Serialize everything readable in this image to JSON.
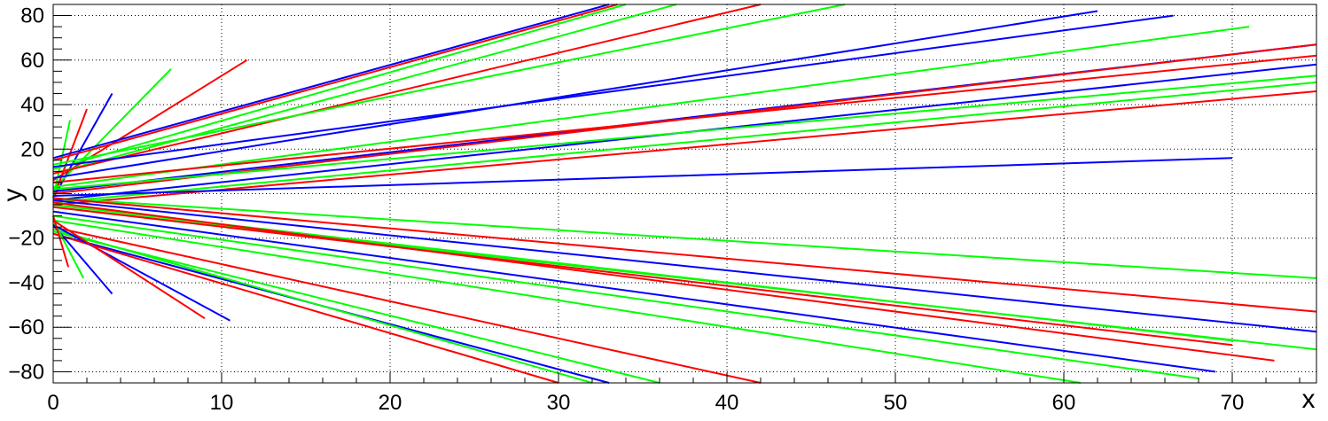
{
  "chart_data": {
    "type": "line",
    "title": "",
    "xlabel": "x",
    "ylabel": "y",
    "xlim": [
      0,
      75
    ],
    "ylim": [
      -85,
      85
    ],
    "grid": true,
    "x_ticks": [
      0,
      10,
      20,
      30,
      40,
      50,
      60,
      70
    ],
    "y_ticks": [
      -80,
      -60,
      -40,
      -20,
      0,
      20,
      40,
      60,
      80
    ],
    "x_tick_labels": [
      "0",
      "10",
      "20",
      "30",
      "40",
      "50",
      "60",
      "70"
    ],
    "y_tick_labels": [
      "−80",
      "−60",
      "−40",
      "−20",
      "0",
      "20",
      "40",
      "60",
      "80"
    ],
    "series": [
      {
        "color": "#0000ff",
        "x": [
          0,
          3.5
        ],
        "y": [
          -2,
          45
        ]
      },
      {
        "color": "#00ff00",
        "x": [
          0,
          7
        ],
        "y": [
          2,
          56
        ]
      },
      {
        "color": "#ff0000",
        "x": [
          0,
          11.5
        ],
        "y": [
          6,
          60
        ]
      },
      {
        "color": "#ff0000",
        "x": [
          0,
          2
        ],
        "y": [
          -2,
          38
        ]
      },
      {
        "color": "#00ff00",
        "x": [
          0,
          1
        ],
        "y": [
          -2,
          33
        ]
      },
      {
        "color": "#0000ff",
        "x": [
          0,
          33
        ],
        "y": [
          16,
          85
        ]
      },
      {
        "color": "#ff0000",
        "x": [
          0,
          33.5
        ],
        "y": [
          15,
          85
        ]
      },
      {
        "color": "#00ff00",
        "x": [
          0,
          34
        ],
        "y": [
          11,
          85
        ]
      },
      {
        "color": "#00ff00",
        "x": [
          0,
          37
        ],
        "y": [
          9,
          85
        ]
      },
      {
        "color": "#ff0000",
        "x": [
          0,
          42
        ],
        "y": [
          9,
          85
        ]
      },
      {
        "color": "#00ff00",
        "x": [
          0,
          47
        ],
        "y": [
          13,
          85
        ]
      },
      {
        "color": "#0000ff",
        "x": [
          0,
          62
        ],
        "y": [
          7,
          82
        ]
      },
      {
        "color": "#0000ff",
        "x": [
          0,
          66.5
        ],
        "y": [
          12,
          80
        ]
      },
      {
        "color": "#00ff00",
        "x": [
          0,
          71
        ],
        "y": [
          3,
          75
        ]
      },
      {
        "color": "#0000ff",
        "x": [
          0,
          75
        ],
        "y": [
          1,
          67
        ]
      },
      {
        "color": "#ff0000",
        "x": [
          0,
          75
        ],
        "y": [
          0,
          67
        ]
      },
      {
        "color": "#ff0000",
        "x": [
          0,
          75
        ],
        "y": [
          5,
          62
        ]
      },
      {
        "color": "#0000ff",
        "x": [
          0,
          75
        ],
        "y": [
          -3,
          58
        ]
      },
      {
        "color": "#00ff00",
        "x": [
          0,
          75
        ],
        "y": [
          2,
          53
        ]
      },
      {
        "color": "#00ff00",
        "x": [
          0,
          75
        ],
        "y": [
          -4,
          50
        ]
      },
      {
        "color": "#ff0000",
        "x": [
          0,
          75
        ],
        "y": [
          -5,
          46
        ]
      },
      {
        "color": "#0000ff",
        "x": [
          0,
          70
        ],
        "y": [
          -1,
          16
        ]
      },
      {
        "color": "#00ff00",
        "x": [
          0,
          75
        ],
        "y": [
          -2,
          -38
        ]
      },
      {
        "color": "#ff0000",
        "x": [
          0,
          75
        ],
        "y": [
          -2,
          -53
        ]
      },
      {
        "color": "#0000ff",
        "x": [
          0,
          75
        ],
        "y": [
          -3,
          -62
        ]
      },
      {
        "color": "#00ff00",
        "x": [
          0,
          75
        ],
        "y": [
          -6,
          -70
        ]
      },
      {
        "color": "#00ff00",
        "x": [
          0,
          70
        ],
        "y": [
          -5,
          -66
        ]
      },
      {
        "color": "#ff0000",
        "x": [
          0,
          70
        ],
        "y": [
          -6,
          -68
        ]
      },
      {
        "color": "#ff0000",
        "x": [
          0,
          72.5
        ],
        "y": [
          -4,
          -75
        ]
      },
      {
        "color": "#0000ff",
        "x": [
          0,
          69
        ],
        "y": [
          -8,
          -80
        ]
      },
      {
        "color": "#00ff00",
        "x": [
          0,
          68
        ],
        "y": [
          -10,
          -83
        ]
      },
      {
        "color": "#00ff00",
        "x": [
          0,
          61
        ],
        "y": [
          -12,
          -85
        ]
      },
      {
        "color": "#ff0000",
        "x": [
          0,
          42
        ],
        "y": [
          -15,
          -85
        ]
      },
      {
        "color": "#00ff00",
        "x": [
          0,
          36
        ],
        "y": [
          -17,
          -85
        ]
      },
      {
        "color": "#0000ff",
        "x": [
          0,
          33
        ],
        "y": [
          -18,
          -85
        ]
      },
      {
        "color": "#00ff00",
        "x": [
          0,
          32
        ],
        "y": [
          -16,
          -85
        ]
      },
      {
        "color": "#ff0000",
        "x": [
          0,
          30
        ],
        "y": [
          -18,
          -85
        ]
      },
      {
        "color": "#0000ff",
        "x": [
          0,
          10.5
        ],
        "y": [
          -14,
          -57
        ]
      },
      {
        "color": "#ff0000",
        "x": [
          0,
          9
        ],
        "y": [
          -12,
          -56
        ]
      },
      {
        "color": "#0000ff",
        "x": [
          0,
          3.5
        ],
        "y": [
          -14,
          -45
        ]
      },
      {
        "color": "#00ff00",
        "x": [
          0,
          1.8
        ],
        "y": [
          -12,
          -38
        ]
      },
      {
        "color": "#ff0000",
        "x": [
          0,
          0.9
        ],
        "y": [
          -10,
          -33
        ]
      }
    ]
  }
}
